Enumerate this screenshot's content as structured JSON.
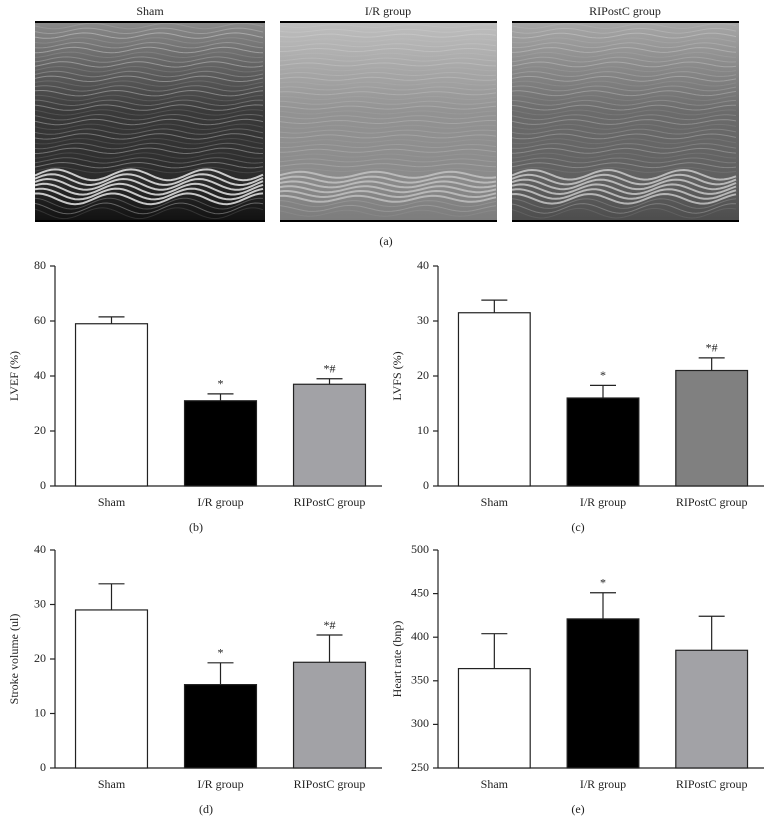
{
  "figure": {
    "panels": [
      {
        "title": "Sham"
      },
      {
        "title": "I/R group"
      },
      {
        "title": "RIPostC group"
      }
    ],
    "caption": "(a)"
  },
  "chart_data": [
    {
      "type": "bar",
      "caption": "(b)",
      "y_label": "LVEF (%)",
      "categories": [
        "Sham",
        "I/R group",
        "RIPostC group"
      ],
      "values": [
        59,
        31,
        37
      ],
      "errors": [
        2.5,
        2.5,
        2
      ],
      "annotations": [
        null,
        "*",
        "*#"
      ],
      "colors": [
        "#ffffff",
        "#000000",
        "#a2a2a6"
      ],
      "ylim": [
        0,
        80
      ],
      "yticks": [
        0,
        20,
        40,
        60,
        80
      ]
    },
    {
      "type": "bar",
      "caption": "(c)",
      "y_label": "LVFS (%)",
      "categories": [
        "Sham",
        "I/R group",
        "RIPostC group"
      ],
      "values": [
        31.5,
        16,
        21
      ],
      "errors": [
        2.3,
        2.3,
        2.3
      ],
      "annotations": [
        null,
        "*",
        "*#"
      ],
      "colors": [
        "#ffffff",
        "#000000",
        "#808080"
      ],
      "ylim": [
        0,
        40
      ],
      "yticks": [
        0,
        10,
        20,
        30,
        40
      ]
    },
    {
      "type": "bar",
      "caption": "(d)",
      "y_label": "Stroke volume (ul)",
      "categories": [
        "Sham",
        "I/R group",
        "RIPostC group"
      ],
      "values": [
        29,
        15.3,
        19.4
      ],
      "errors": [
        4.8,
        4,
        5
      ],
      "annotations": [
        null,
        "*",
        "*#"
      ],
      "colors": [
        "#ffffff",
        "#000000",
        "#a2a2a6"
      ],
      "ylim": [
        0,
        40
      ],
      "yticks": [
        0,
        10,
        20,
        30,
        40
      ]
    },
    {
      "type": "bar",
      "caption": "(e)",
      "y_label": "Heart rate (bnp)",
      "categories": [
        "Sham",
        "I/R group",
        "RIPostC group"
      ],
      "values": [
        364,
        421,
        385
      ],
      "errors": [
        40,
        30,
        39
      ],
      "annotations": [
        null,
        "*",
        null
      ],
      "colors": [
        "#ffffff",
        "#000000",
        "#a2a2a6"
      ],
      "ylim": [
        250,
        500
      ],
      "yticks": [
        250,
        300,
        350,
        400,
        450,
        500
      ]
    }
  ]
}
